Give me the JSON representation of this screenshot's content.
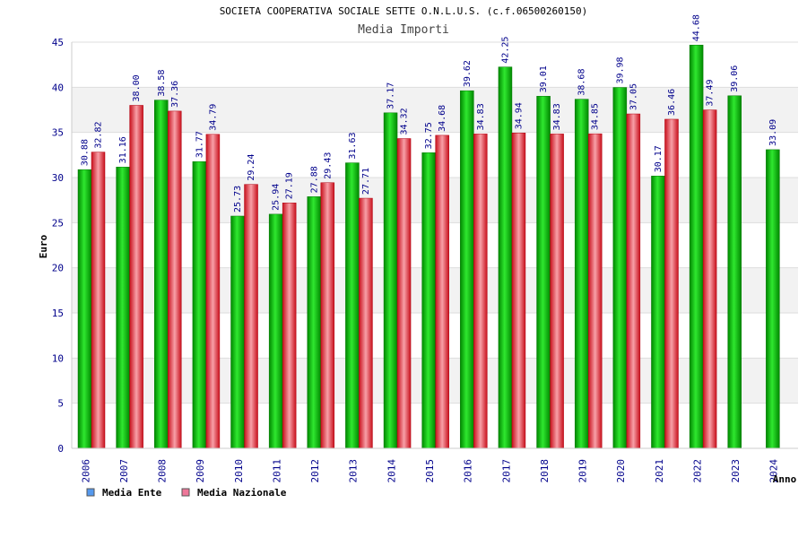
{
  "chart_data": {
    "type": "bar",
    "title": "SOCIETA COOPERATIVA SOCIALE SETTE O.N.L.U.S. (c.f.06500260150)",
    "subtitle": "Media Importi",
    "xlabel": "Anno",
    "ylabel": "Euro",
    "ylim": [
      0,
      45
    ],
    "yticks": [
      0,
      5,
      10,
      15,
      20,
      25,
      30,
      35,
      40,
      45
    ],
    "categories": [
      "2006",
      "2007",
      "2008",
      "2009",
      "2010",
      "2011",
      "2012",
      "2013",
      "2014",
      "2015",
      "2016",
      "2017",
      "2018",
      "2019",
      "2020",
      "2021",
      "2022",
      "2023",
      "2024"
    ],
    "series": [
      {
        "name": "Media Ente",
        "bar_color": "#00c000",
        "legend_color": "#5599ee",
        "values": [
          30.88,
          31.16,
          38.58,
          31.77,
          25.73,
          25.94,
          27.88,
          31.63,
          37.17,
          32.75,
          39.62,
          42.25,
          39.01,
          38.68,
          39.98,
          30.17,
          44.68,
          39.06,
          33.09
        ],
        "labels": [
          "30.88",
          "31.16",
          "38.58",
          "31.77",
          "25.73",
          "25.94",
          "27.88",
          "31.63",
          "37.17",
          "32.75",
          "39.62",
          "42.25",
          "39.01",
          "38.68",
          "39.98",
          "30.17",
          "44.68",
          "39.06",
          "33.09"
        ]
      },
      {
        "name": "Media Nazionale",
        "bar_color": "#e8303a",
        "legend_color": "#ee7799",
        "values": [
          32.82,
          38.0,
          37.36,
          34.79,
          29.24,
          27.19,
          29.43,
          27.71,
          34.32,
          34.68,
          34.83,
          34.94,
          34.83,
          34.85,
          37.05,
          36.46,
          37.49,
          null,
          null
        ],
        "labels": [
          "32.82",
          "38.00",
          "37.36",
          "34.79",
          "29.24",
          "27.19",
          "29.43",
          "27.71",
          "34.32",
          "34.68",
          "34.83",
          "34.94",
          "34.83",
          "34.85",
          "37.05",
          "36.46",
          "37.49",
          null,
          null
        ]
      }
    ],
    "grid": true,
    "legend_position": "bottom-left"
  }
}
